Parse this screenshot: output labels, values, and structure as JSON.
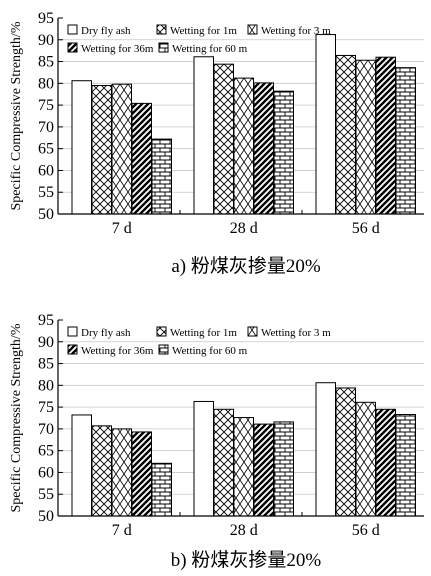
{
  "chart_data": [
    {
      "type": "bar",
      "caption": "a) 粉煤灰掺量20%",
      "ylabel": "Specific Compressive Strength/%",
      "ylim": [
        50,
        95
      ],
      "yticks": [
        50,
        55,
        60,
        65,
        70,
        75,
        80,
        85,
        90,
        95
      ],
      "categories": [
        "7 d",
        "28 d",
        "56 d"
      ],
      "grid": true,
      "legend": "top-left",
      "series": [
        {
          "name": "Dry fly ash",
          "pattern": "plain",
          "values": [
            80.6,
            86.1,
            91.2
          ]
        },
        {
          "name": "Wetting for 1m",
          "pattern": "crosshatch",
          "values": [
            79.5,
            84.4,
            86.4
          ]
        },
        {
          "name": "Wetting for 3 m",
          "pattern": "diamond",
          "values": [
            79.8,
            81.2,
            85.3
          ]
        },
        {
          "name": "Wetting for 36m",
          "pattern": "diagonal",
          "values": [
            75.4,
            80.1,
            86.0
          ]
        },
        {
          "name": "Wetting for 60 m",
          "pattern": "brick",
          "values": [
            67.2,
            78.2,
            83.6
          ]
        }
      ]
    },
    {
      "type": "bar",
      "caption": "b) 粉煤灰掺量20%",
      "ylabel": "Specific Compressive Strength/%",
      "ylim": [
        50,
        95
      ],
      "yticks": [
        50,
        55,
        60,
        65,
        70,
        75,
        80,
        85,
        90,
        95
      ],
      "categories": [
        "7 d",
        "28 d",
        "56 d"
      ],
      "grid": true,
      "legend": "top-left",
      "series": [
        {
          "name": "Dry fly ash",
          "pattern": "plain",
          "values": [
            73.2,
            76.3,
            80.6
          ]
        },
        {
          "name": "Wetting for 1m",
          "pattern": "crosshatch",
          "values": [
            70.7,
            74.5,
            79.4
          ]
        },
        {
          "name": "Wetting for 3 m",
          "pattern": "diamond",
          "values": [
            70.0,
            72.6,
            76.1
          ]
        },
        {
          "name": "Wetting for 36m",
          "pattern": "diagonal",
          "values": [
            69.3,
            71.1,
            74.5
          ]
        },
        {
          "name": "Wetting for 60 m",
          "pattern": "brick",
          "values": [
            62.1,
            71.6,
            73.3
          ]
        }
      ]
    }
  ]
}
